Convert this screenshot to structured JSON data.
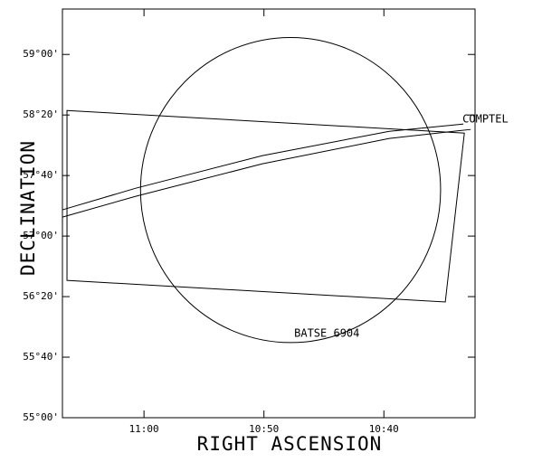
{
  "chart_data": {
    "type": "sky-regions",
    "xlabel": "RIGHT ASCENSION",
    "ylabel": "DECLINATION",
    "xlim": [
      66.8,
      32.4
    ],
    "ylim": [
      55,
      59.5
    ],
    "xticks": [
      {
        "value": 60,
        "label": "11:00"
      },
      {
        "value": 50,
        "label": "10:50"
      },
      {
        "value": 40,
        "label": "10:40"
      }
    ],
    "yticks": [
      {
        "value": 55,
        "label": "55°00'"
      },
      {
        "value": 55.6667,
        "label": "55°40'"
      },
      {
        "value": 56.3333,
        "label": "56°20'"
      },
      {
        "value": 57,
        "label": "57°00'"
      },
      {
        "value": 57.6667,
        "label": "57°40'"
      },
      {
        "value": 58.3333,
        "label": "58°20'"
      },
      {
        "value": 59,
        "label": "59°00'"
      }
    ],
    "circle": {
      "name": "BATSE 6904",
      "center_ra": 47.78,
      "center_dec": 57.507,
      "radius_deg": 1.68
    },
    "box": {
      "ra": [
        66.42,
        33.29,
        34.88,
        66.42
      ],
      "dec": [
        58.383,
        58.134,
        56.274,
        56.512
      ]
    },
    "arcs": {
      "name": "COMPTEL",
      "series": [
        {
          "ra": [
            66.8,
            60.69,
            50.12,
            39.55,
            33.37
          ],
          "dec": [
            57.289,
            57.527,
            57.886,
            58.154,
            58.234
          ]
        },
        {
          "ra": [
            66.8,
            60.69,
            50.12,
            39.55,
            32.76
          ],
          "dec": [
            57.209,
            57.438,
            57.796,
            58.075,
            58.174
          ]
        }
      ]
    },
    "color": "#000000"
  }
}
